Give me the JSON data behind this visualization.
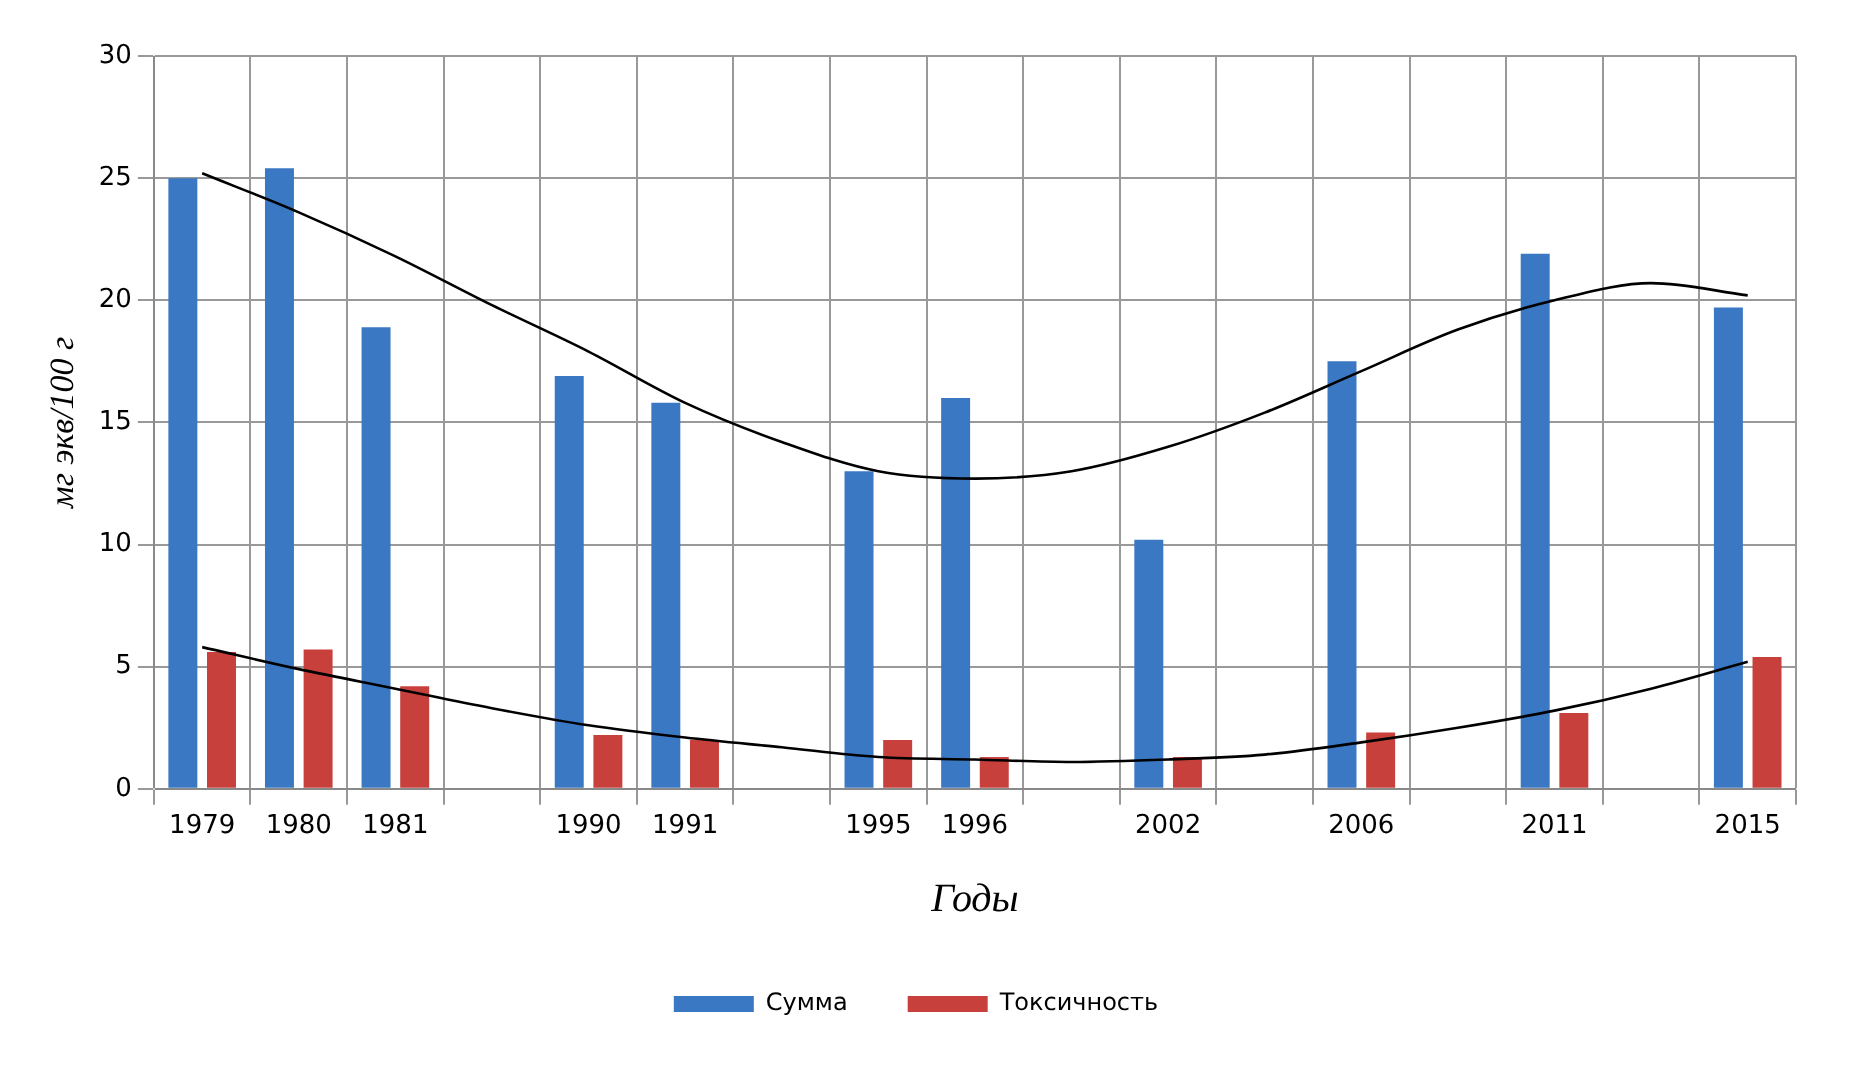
{
  "chart_data": {
    "type": "bar",
    "xlabel": "Годы",
    "ylabel": "мг экв/100 г",
    "categories": [
      "1979",
      "1980",
      "1981",
      null,
      "1990",
      "1991",
      null,
      "1995",
      "1996",
      null,
      "2002",
      null,
      "2006",
      null,
      "2011",
      null,
      "2015"
    ],
    "series": [
      {
        "name": "Сумма",
        "color": "#3a78c4",
        "values": [
          25.0,
          25.4,
          18.9,
          null,
          16.9,
          15.8,
          null,
          13.0,
          16.0,
          null,
          10.2,
          null,
          17.5,
          null,
          21.9,
          null,
          19.7
        ]
      },
      {
        "name": "Токсичность",
        "color": "#c8403c",
        "values": [
          5.6,
          5.7,
          4.2,
          null,
          2.2,
          2.0,
          null,
          2.0,
          1.3,
          null,
          1.3,
          null,
          2.3,
          null,
          3.1,
          null,
          5.4
        ]
      },
      {
        "type": "line",
        "color": "#000000",
        "values": [
          25.2,
          23.6,
          21.8,
          19.8,
          17.9,
          15.8,
          14.2,
          13.0,
          12.7,
          13.0,
          14.0,
          15.4,
          17.1,
          18.8,
          20.0,
          20.7,
          20.2
        ]
      },
      {
        "type": "line",
        "color": "#000000",
        "values": [
          5.8,
          4.9,
          4.1,
          3.3,
          2.6,
          2.1,
          1.7,
          1.3,
          1.2,
          1.1,
          1.2,
          1.4,
          1.9,
          2.5,
          3.2,
          4.1,
          5.2
        ]
      }
    ],
    "ylim": [
      0,
      30
    ],
    "yticks": [
      0,
      5,
      10,
      15,
      20,
      25,
      30
    ],
    "grid": true,
    "legend": "bottom",
    "marker": "none",
    "line_style": "solid"
  }
}
